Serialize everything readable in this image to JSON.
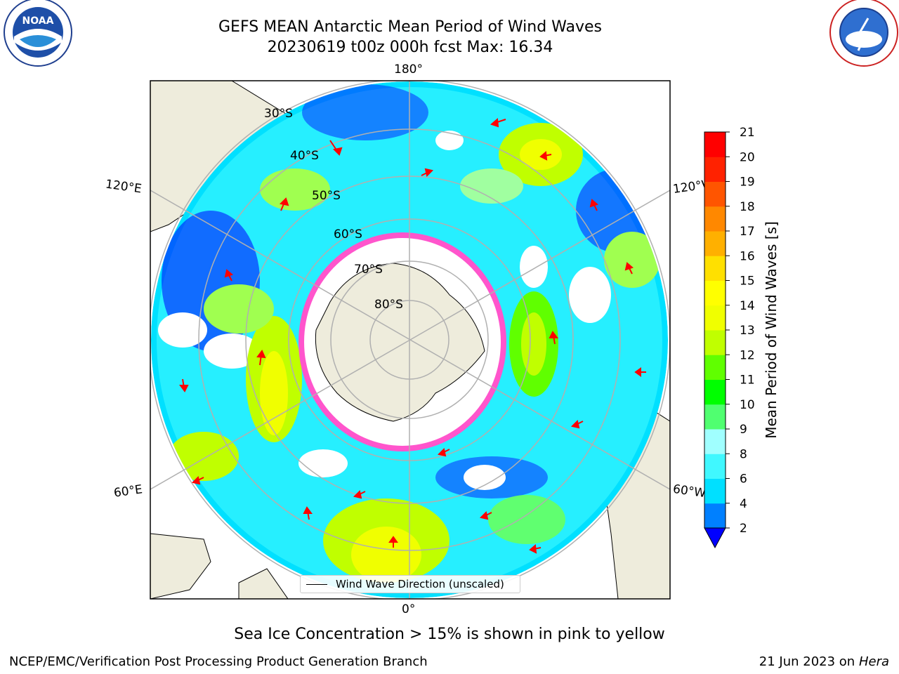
{
  "header": {
    "title_line1": "GEFS MEAN Antarctic Mean Period of Wind Waves",
    "title_line2": "20230619 t00z 000h fcst   Max: 16.34"
  },
  "logos": {
    "left": "noaa-logo",
    "right": "national-weather-service-logo"
  },
  "map": {
    "projection": "south-polar-stereographic",
    "longitude_labels": {
      "top": "180°",
      "bottom": "0°",
      "upper_left": "120°E",
      "upper_right": "120°W",
      "lower_left": "60°E",
      "lower_right": "60°W"
    },
    "latitude_labels": [
      "30°S",
      "40°S",
      "50°S",
      "60°S",
      "70°S",
      "80°S"
    ],
    "colors": {
      "land": "#eeecdc",
      "ice": "#ff55cc",
      "graticule": "#b0b0b0"
    }
  },
  "legend": {
    "wind_wave_label": "Wind Wave Direction (unscaled)"
  },
  "colorbar": {
    "title": "Mean Period of Wind Waves [s]",
    "ticks": [
      "2",
      "4",
      "6",
      "8",
      "9",
      "10",
      "11",
      "12",
      "13",
      "14",
      "15",
      "16",
      "17",
      "18",
      "19",
      "20",
      "21"
    ],
    "colors": [
      "#0000ff",
      "#0080ff",
      "#00e0ff",
      "#40f8ff",
      "#a0ffff",
      "#50ff70",
      "#00ff00",
      "#60ff00",
      "#c0ff00",
      "#f0ff00",
      "#ffff00",
      "#ffe000",
      "#ffb000",
      "#ff8800",
      "#ff5500",
      "#ff2200",
      "#ff0000"
    ]
  },
  "footer": {
    "ice_note": "Sea Ice Concentration > 15% is shown in pink to yellow",
    "credit": "NCEP/EMC/Verification Post Processing Product Generation Branch",
    "date": "21 Jun 2023 on",
    "host": "Hera"
  }
}
